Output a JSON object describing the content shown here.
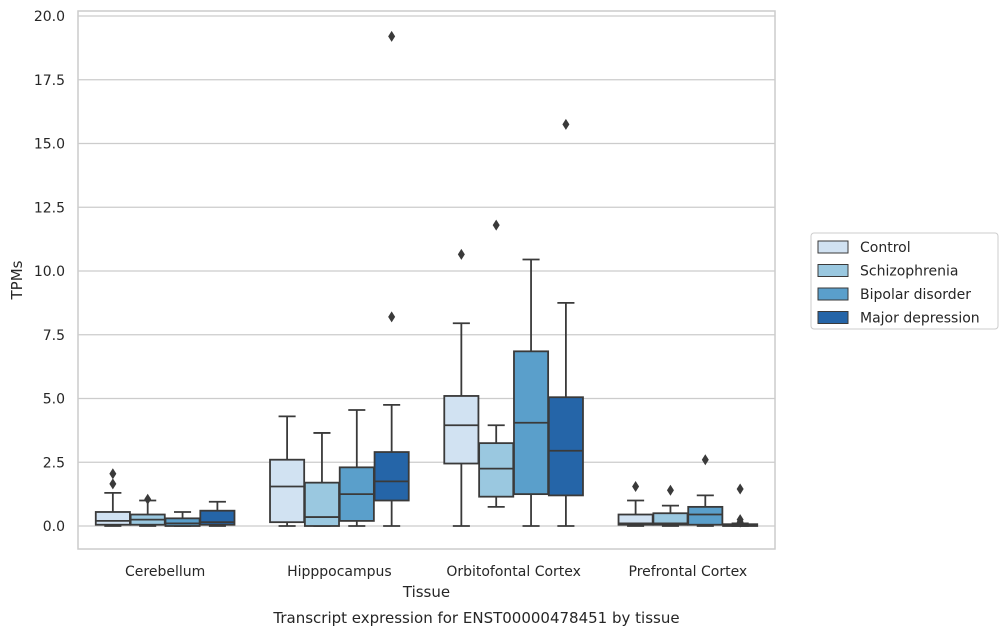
{
  "caption": "Transcript expression for ENST00000478451 by tissue",
  "chart_data": {
    "type": "box",
    "xlabel": "Tissue",
    "ylabel": "TPMs",
    "ylim": [
      -0.9,
      20.1
    ],
    "yticks": [
      "0.0",
      "2.5",
      "5.0",
      "7.5",
      "10.0",
      "12.5",
      "15.0",
      "17.5",
      "20.0"
    ],
    "grid": true,
    "legend_position": "right",
    "categories": [
      "Cerebellum",
      "Hipppocampus",
      "Orbitofontal Cortex",
      "Prefrontal Cortex"
    ],
    "series": [
      {
        "name": "Control",
        "color": "#d1e2f2",
        "boxes": [
          {
            "whislo": 0.0,
            "q1": 0.05,
            "med": 0.2,
            "q3": 0.55,
            "whishi": 1.3,
            "fliers": [
              1.65,
              2.05
            ]
          },
          {
            "whislo": 0.0,
            "q1": 0.15,
            "med": 1.55,
            "q3": 2.6,
            "whishi": 4.3,
            "fliers": []
          },
          {
            "whislo": 0.0,
            "q1": 2.45,
            "med": 3.95,
            "q3": 5.1,
            "whishi": 7.95,
            "fliers": [
              10.65
            ]
          },
          {
            "whislo": 0.0,
            "q1": 0.05,
            "med": 0.1,
            "q3": 0.45,
            "whishi": 1.0,
            "fliers": [
              1.55
            ]
          }
        ]
      },
      {
        "name": "Schizophrenia",
        "color": "#9ac8e0",
        "boxes": [
          {
            "whislo": 0.0,
            "q1": 0.05,
            "med": 0.25,
            "q3": 0.45,
            "whishi": 1.0,
            "fliers": [
              1.05
            ]
          },
          {
            "whislo": 0.0,
            "q1": 0.0,
            "med": 0.35,
            "q3": 1.7,
            "whishi": 3.65,
            "fliers": []
          },
          {
            "whislo": 0.75,
            "q1": 1.15,
            "med": 2.25,
            "q3": 3.25,
            "whishi": 3.95,
            "fliers": [
              11.8
            ]
          },
          {
            "whislo": 0.0,
            "q1": 0.05,
            "med": 0.1,
            "q3": 0.5,
            "whishi": 0.8,
            "fliers": [
              1.4
            ]
          }
        ]
      },
      {
        "name": "Bipolar disorder",
        "color": "#5a9fcb",
        "boxes": [
          {
            "whislo": 0.0,
            "q1": 0.0,
            "med": 0.1,
            "q3": 0.3,
            "whishi": 0.55,
            "fliers": []
          },
          {
            "whislo": 0.0,
            "q1": 0.2,
            "med": 1.25,
            "q3": 2.3,
            "whishi": 4.55,
            "fliers": []
          },
          {
            "whislo": 0.0,
            "q1": 1.25,
            "med": 4.05,
            "q3": 6.85,
            "whishi": 10.45,
            "fliers": []
          },
          {
            "whislo": 0.0,
            "q1": 0.05,
            "med": 0.45,
            "q3": 0.75,
            "whishi": 1.2,
            "fliers": [
              2.6
            ]
          }
        ]
      },
      {
        "name": "Major depression",
        "color": "#2565a8",
        "boxes": [
          {
            "whislo": 0.0,
            "q1": 0.05,
            "med": 0.15,
            "q3": 0.6,
            "whishi": 0.95,
            "fliers": []
          },
          {
            "whislo": 0.0,
            "q1": 1.0,
            "med": 1.75,
            "q3": 2.9,
            "whishi": 4.75,
            "fliers": [
              8.2,
              19.2
            ]
          },
          {
            "whislo": 0.0,
            "q1": 1.2,
            "med": 2.95,
            "q3": 5.05,
            "whishi": 8.75,
            "fliers": [
              15.75
            ]
          },
          {
            "whislo": 0.0,
            "q1": 0.0,
            "med": 0.02,
            "q3": 0.07,
            "whishi": 0.1,
            "fliers": [
              0.15,
              0.25,
              1.45
            ]
          }
        ]
      }
    ]
  }
}
